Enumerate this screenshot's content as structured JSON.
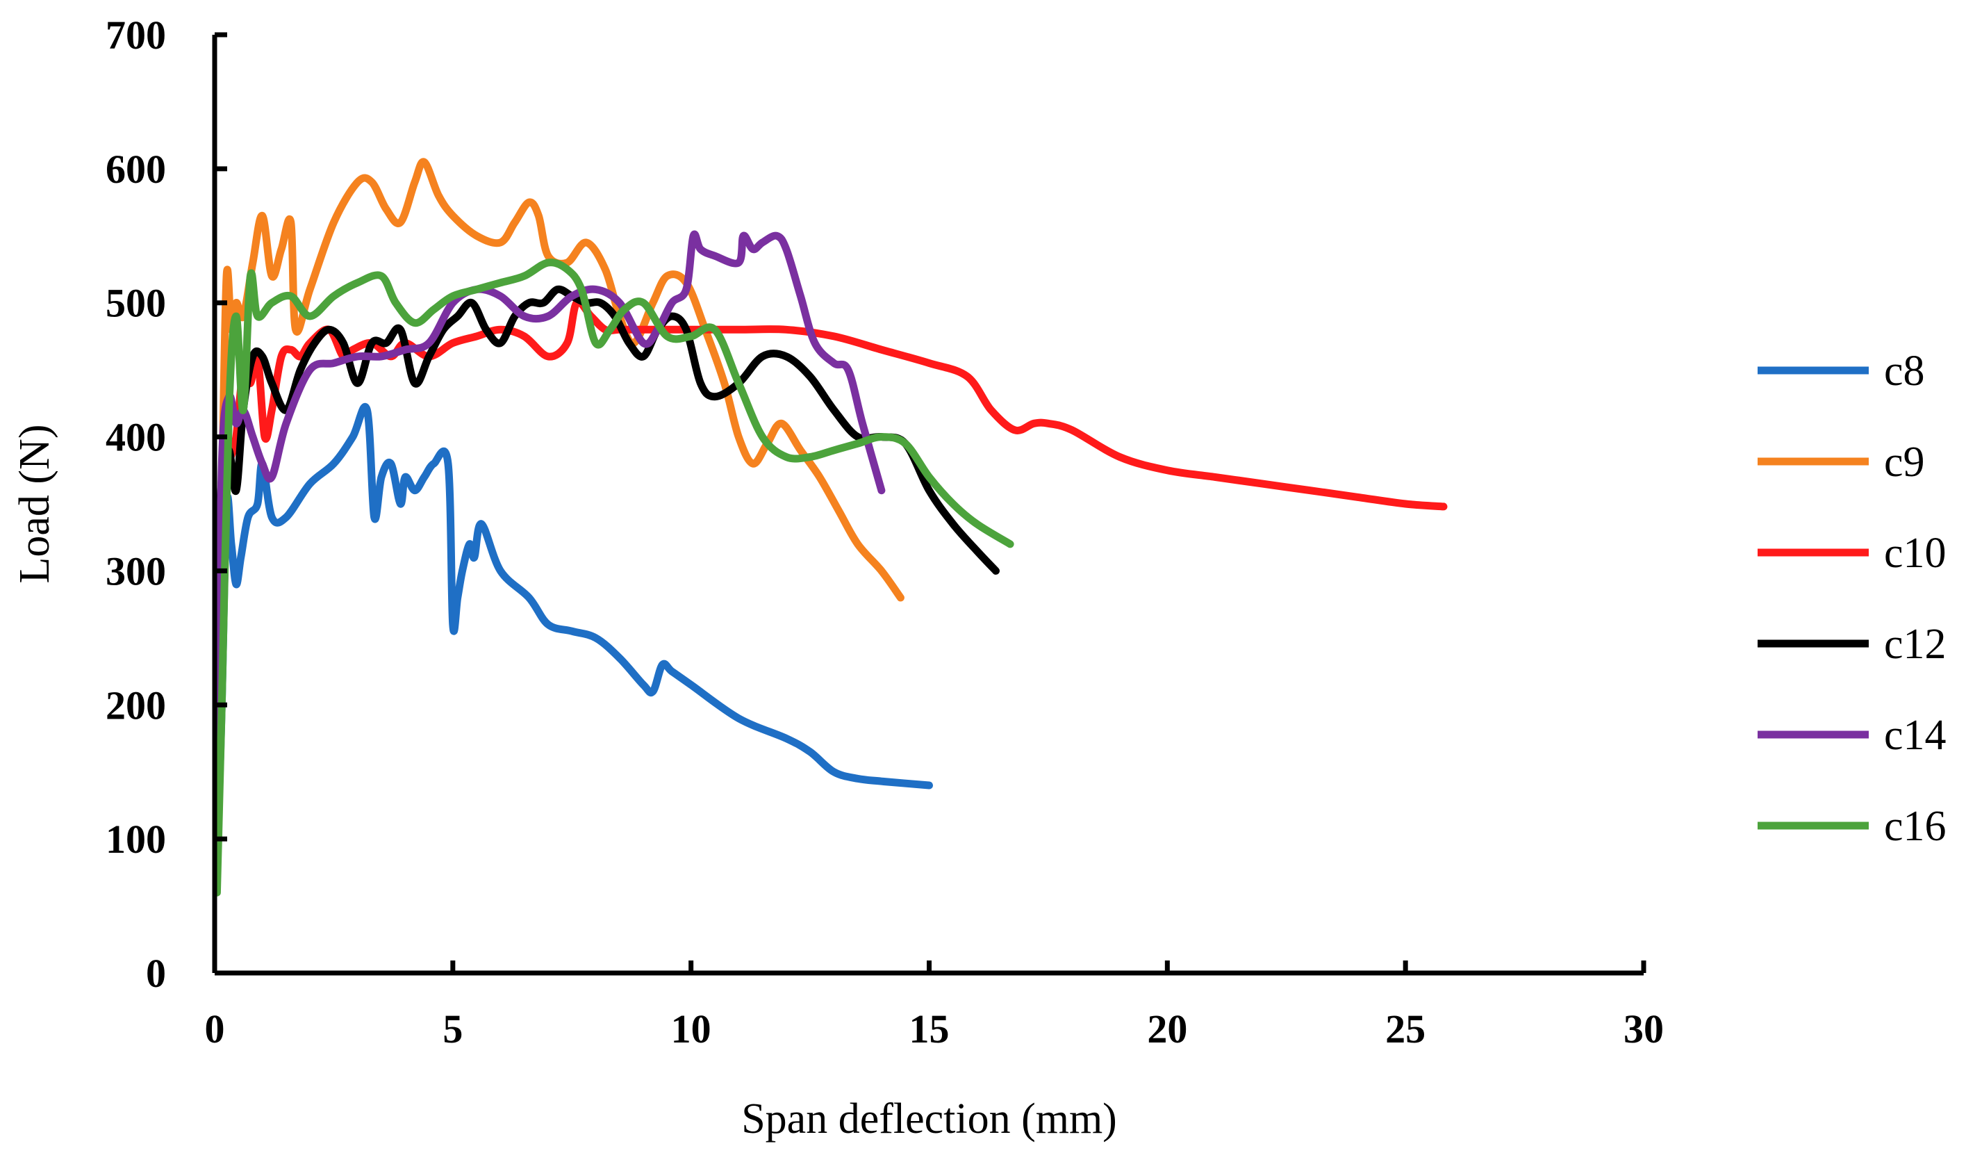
{
  "chart_data": {
    "type": "line",
    "title": "",
    "xlabel": "Span deflection (mm)",
    "ylabel": "Load (N)",
    "xlim": [
      0,
      30
    ],
    "ylim": [
      0,
      700
    ],
    "xticks": [
      0,
      5,
      10,
      15,
      20,
      25,
      30
    ],
    "yticks": [
      0,
      100,
      200,
      300,
      400,
      500,
      600,
      700
    ],
    "grid": false,
    "legend_position": "right",
    "series": [
      {
        "name": "c8",
        "color": "#1f6fc5",
        "x": [
          0.05,
          0.15,
          0.25,
          0.35,
          0.45,
          0.55,
          0.7,
          0.9,
          1.0,
          1.2,
          1.5,
          2.0,
          2.5,
          2.9,
          3.2,
          3.35,
          3.5,
          3.7,
          3.9,
          4.0,
          4.2,
          4.4,
          4.6,
          4.9,
          5.0,
          5.1,
          5.2,
          5.35,
          5.45,
          5.6,
          6.0,
          6.6,
          7.0,
          7.5,
          8.0,
          8.5,
          9.0,
          9.2,
          9.4,
          9.6,
          10.0,
          11.0,
          12.0,
          12.5,
          13.0,
          13.5,
          14.0,
          15.0
        ],
        "values": [
          80,
          200,
          350,
          320,
          290,
          310,
          340,
          350,
          380,
          340,
          340,
          365,
          380,
          400,
          420,
          340,
          370,
          380,
          350,
          370,
          360,
          370,
          380,
          380,
          260,
          280,
          300,
          320,
          310,
          335,
          300,
          280,
          260,
          255,
          250,
          235,
          215,
          210,
          230,
          225,
          215,
          190,
          175,
          165,
          150,
          145,
          143,
          140
        ]
      },
      {
        "name": "c9",
        "color": "#f5821f",
        "x": [
          0.05,
          0.15,
          0.25,
          0.35,
          0.45,
          0.6,
          0.8,
          1.0,
          1.2,
          1.4,
          1.6,
          1.7,
          2.0,
          2.5,
          3.0,
          3.3,
          3.6,
          3.9,
          4.2,
          4.4,
          4.7,
          5.0,
          5.5,
          6.0,
          6.3,
          6.6,
          6.8,
          7.0,
          7.4,
          7.8,
          8.2,
          8.5,
          8.8,
          9.2,
          9.5,
          9.9,
          10.3,
          10.7,
          11.0,
          11.3,
          11.6,
          11.9,
          12.3,
          12.7,
          13.1,
          13.5,
          14.0,
          14.4
        ],
        "values": [
          100,
          350,
          520,
          480,
          500,
          490,
          530,
          565,
          520,
          540,
          560,
          480,
          510,
          560,
          590,
          590,
          570,
          560,
          590,
          605,
          580,
          565,
          550,
          545,
          560,
          575,
          565,
          535,
          530,
          545,
          525,
          490,
          470,
          500,
          520,
          515,
          480,
          440,
          400,
          380,
          395,
          410,
          390,
          370,
          345,
          320,
          300,
          280
        ]
      },
      {
        "name": "c10",
        "color": "#ff1a1a",
        "x": [
          0.05,
          0.15,
          0.3,
          0.45,
          0.6,
          0.75,
          0.9,
          1.05,
          1.2,
          1.4,
          1.6,
          1.8,
          2.0,
          2.4,
          2.7,
          2.9,
          3.3,
          3.7,
          4.0,
          4.5,
          5.0,
          5.5,
          6.0,
          6.5,
          7.0,
          7.4,
          7.6,
          7.9,
          8.2,
          8.5,
          9.0,
          10.0,
          11.0,
          12.0,
          13.0,
          14.0,
          15.0,
          15.8,
          16.3,
          16.8,
          17.2,
          17.5,
          18.0,
          19.0,
          20.0,
          21.0,
          22.0,
          23.0,
          24.0,
          25.0,
          25.8
        ],
        "values": [
          200,
          350,
          380,
          400,
          450,
          440,
          460,
          400,
          420,
          460,
          465,
          460,
          470,
          480,
          460,
          465,
          470,
          460,
          470,
          460,
          470,
          475,
          480,
          475,
          460,
          470,
          500,
          490,
          480,
          480,
          480,
          480,
          480,
          480,
          475,
          465,
          455,
          445,
          420,
          405,
          410,
          410,
          405,
          385,
          375,
          370,
          365,
          360,
          355,
          350,
          348
        ]
      },
      {
        "name": "c12",
        "color": "#000000",
        "x": [
          0.05,
          0.15,
          0.3,
          0.45,
          0.6,
          0.8,
          1.0,
          1.2,
          1.5,
          1.8,
          2.1,
          2.4,
          2.7,
          3.0,
          3.3,
          3.6,
          3.9,
          4.2,
          4.5,
          4.8,
          5.1,
          5.4,
          5.7,
          6.0,
          6.3,
          6.6,
          6.9,
          7.2,
          7.5,
          7.8,
          8.1,
          8.4,
          8.7,
          9.0,
          9.3,
          9.6,
          9.9,
          10.2,
          10.5,
          11.0,
          11.5,
          12.0,
          12.5,
          13.0,
          13.5,
          14.0,
          14.5,
          15.0,
          15.5,
          16.0,
          16.4
        ],
        "values": [
          250,
          370,
          390,
          360,
          420,
          460,
          460,
          440,
          420,
          450,
          470,
          480,
          470,
          440,
          470,
          470,
          480,
          440,
          460,
          480,
          490,
          500,
          480,
          470,
          490,
          500,
          500,
          510,
          505,
          500,
          500,
          490,
          470,
          460,
          480,
          490,
          480,
          440,
          430,
          440,
          460,
          460,
          445,
          420,
          400,
          400,
          395,
          360,
          335,
          315,
          300
        ]
      },
      {
        "name": "c14",
        "color": "#7a30a0",
        "x": [
          0.05,
          0.15,
          0.3,
          0.45,
          0.6,
          0.8,
          1.0,
          1.2,
          1.5,
          2.0,
          2.5,
          3.0,
          3.5,
          4.0,
          4.5,
          5.0,
          5.5,
          6.0,
          6.5,
          7.0,
          7.5,
          8.0,
          8.5,
          9.0,
          9.3,
          9.6,
          9.9,
          10.05,
          10.2,
          10.5,
          11.0,
          11.1,
          11.3,
          11.5,
          11.8,
          12.0,
          12.3,
          12.6,
          13.0,
          13.3,
          13.6,
          14.0
        ],
        "values": [
          150,
          380,
          430,
          410,
          420,
          400,
          380,
          370,
          410,
          450,
          455,
          460,
          460,
          465,
          470,
          500,
          510,
          505,
          490,
          490,
          505,
          510,
          500,
          470,
          480,
          500,
          510,
          550,
          540,
          535,
          530,
          550,
          540,
          545,
          550,
          540,
          505,
          470,
          455,
          450,
          410,
          360
        ]
      },
      {
        "name": "c16",
        "color": "#4ca33c",
        "x": [
          0.05,
          0.15,
          0.3,
          0.45,
          0.6,
          0.75,
          0.9,
          1.2,
          1.6,
          2.0,
          2.5,
          3.0,
          3.5,
          3.8,
          4.2,
          4.6,
          5.0,
          5.5,
          6.0,
          6.5,
          7.0,
          7.4,
          7.7,
          8.0,
          8.3,
          8.6,
          9.0,
          9.5,
          10.0,
          10.5,
          11.0,
          11.5,
          12.0,
          12.5,
          13.0,
          13.5,
          14.0,
          14.5,
          15.0,
          15.5,
          16.0,
          16.7
        ],
        "values": [
          60,
          200,
          420,
          490,
          420,
          520,
          490,
          500,
          505,
          490,
          505,
          515,
          520,
          500,
          485,
          495,
          505,
          510,
          515,
          520,
          530,
          525,
          510,
          470,
          480,
          495,
          500,
          475,
          475,
          480,
          440,
          400,
          385,
          385,
          390,
          395,
          400,
          395,
          370,
          350,
          335,
          320
        ]
      }
    ]
  }
}
